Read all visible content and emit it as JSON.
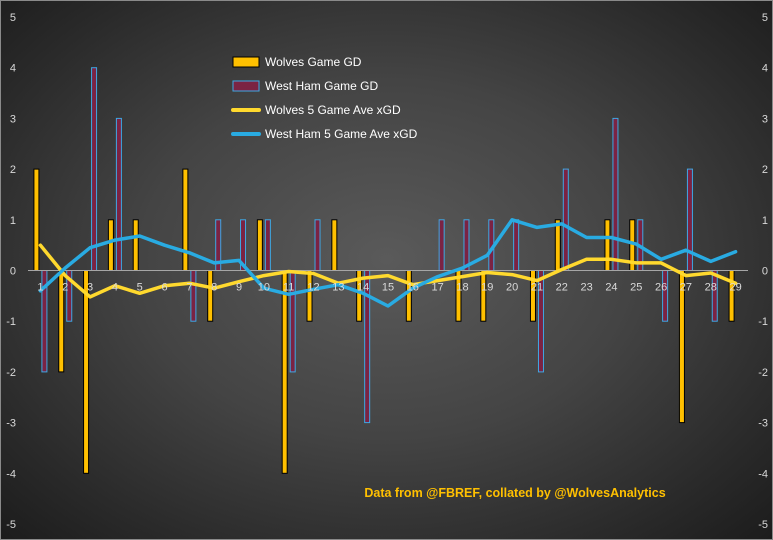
{
  "chart_data": {
    "type": "bar",
    "x": [
      1,
      2,
      3,
      4,
      5,
      6,
      7,
      8,
      9,
      10,
      11,
      12,
      13,
      14,
      15,
      16,
      17,
      18,
      19,
      20,
      21,
      22,
      23,
      24,
      25,
      26,
      27,
      28,
      29
    ],
    "ylim": [
      -5,
      5
    ],
    "yticks": [
      -5,
      -4,
      -3,
      -2,
      -1,
      0,
      1,
      2,
      3,
      4,
      5
    ],
    "grid": false,
    "legend_position": "top-center",
    "series": [
      {
        "name": "Wolves Game GD",
        "type": "bar",
        "color": "#ffc000",
        "values": [
          2,
          -2,
          -4,
          1,
          1,
          0,
          2,
          -1,
          0,
          1,
          -4,
          -1,
          1,
          -1,
          0,
          -1,
          0,
          -1,
          -1,
          0,
          -1,
          1,
          0,
          1,
          1,
          0,
          -3,
          0,
          -1
        ]
      },
      {
        "name": "West Ham Game GD",
        "type": "bar",
        "color": "#7b2343",
        "edge_color": "#3ea8e5",
        "values": [
          -2,
          -1,
          4,
          3,
          0,
          0,
          -1,
          1,
          1,
          1,
          -2,
          1,
          0,
          -3,
          0,
          0,
          1,
          1,
          1,
          1,
          -2,
          2,
          0,
          3,
          1,
          -1,
          2,
          -1,
          0
        ]
      },
      {
        "name": "Wolves 5 Game Ave xGD",
        "type": "line",
        "color": "#ffd92e",
        "values": [
          0.5,
          -0.1,
          -0.52,
          -0.3,
          -0.45,
          -0.3,
          -0.25,
          -0.35,
          -0.22,
          -0.1,
          -0.02,
          -0.06,
          -0.25,
          -0.15,
          -0.1,
          -0.28,
          -0.2,
          -0.12,
          -0.04,
          -0.08,
          -0.2,
          0.02,
          0.22,
          0.22,
          0.15,
          0.15,
          -0.1,
          -0.05,
          -0.25
        ]
      },
      {
        "name": "West Ham 5 Game Ave xGD",
        "type": "line",
        "color": "#29abe2",
        "values": [
          -0.4,
          0.05,
          0.45,
          0.6,
          0.68,
          0.5,
          0.35,
          0.15,
          0.2,
          -0.35,
          -0.47,
          -0.37,
          -0.28,
          -0.45,
          -0.7,
          -0.35,
          -0.12,
          0.05,
          0.3,
          1.0,
          0.85,
          0.92,
          0.65,
          0.65,
          0.52,
          0.22,
          0.4,
          0.18,
          0.37
        ]
      }
    ],
    "annotation": "Data from @FBREF, collated by @WolvesAnalytics"
  }
}
